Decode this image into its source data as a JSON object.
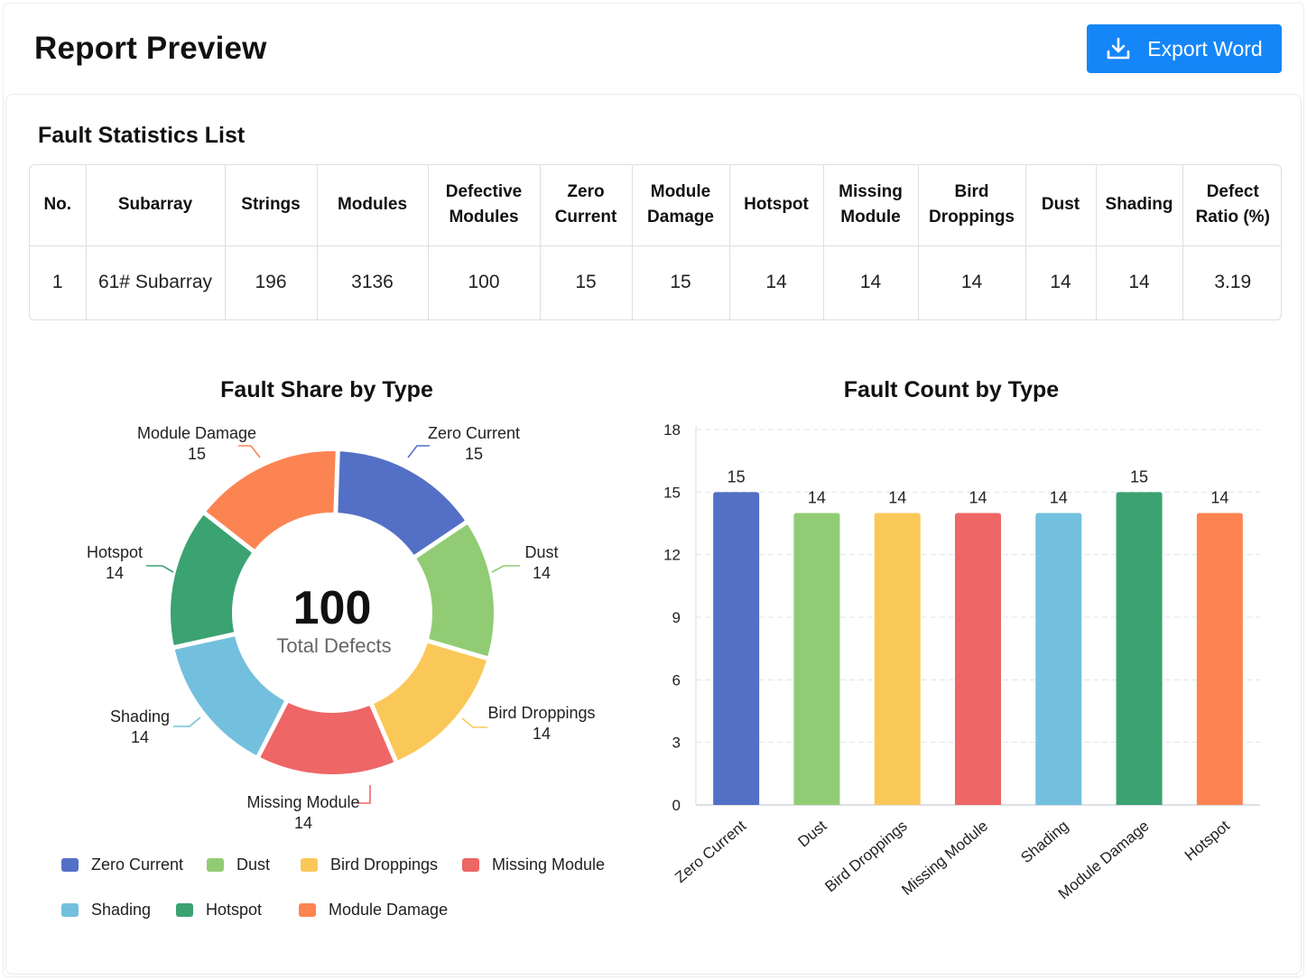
{
  "header": {
    "title": "Report Preview",
    "export_label": "Export Word"
  },
  "table": {
    "title": "Fault Statistics List",
    "columns": [
      {
        "l1": "No.",
        "l2": ""
      },
      {
        "l1": "Subarray",
        "l2": ""
      },
      {
        "l1": "Strings",
        "l2": ""
      },
      {
        "l1": "Modules",
        "l2": ""
      },
      {
        "l1": "Defective",
        "l2": "Modules"
      },
      {
        "l1": "Zero",
        "l2": "Current"
      },
      {
        "l1": "Module",
        "l2": "Damage"
      },
      {
        "l1": "Hotspot",
        "l2": ""
      },
      {
        "l1": "Missing",
        "l2": "Module"
      },
      {
        "l1": "Bird",
        "l2": "Droppings"
      },
      {
        "l1": "Dust",
        "l2": ""
      },
      {
        "l1": "Shading",
        "l2": ""
      },
      {
        "l1": "Defect",
        "l2": "Ratio (%)"
      }
    ],
    "rows": [
      [
        "1",
        "61# Subarray",
        "196",
        "3136",
        "100",
        "15",
        "15",
        "14",
        "14",
        "14",
        "14",
        "14",
        "3.19"
      ]
    ]
  },
  "colors": {
    "zero_current": "#5470c6",
    "dust": "#91cc75",
    "bird_droppings": "#fac858",
    "missing_module": "#ee6666",
    "shading": "#73c0de",
    "hotspot": "#3ba272",
    "module_damage": "#fc8452",
    "accent": "#1586f7"
  },
  "chart_data": [
    {
      "type": "pie",
      "title": "Fault Share by Type",
      "center_value": "100",
      "center_label": "Total Defects",
      "slices": [
        {
          "name": "Zero Current",
          "value": 15,
          "color": "#5470c6"
        },
        {
          "name": "Dust",
          "value": 14,
          "color": "#91cc75"
        },
        {
          "name": "Bird Droppings",
          "value": 14,
          "color": "#fac858"
        },
        {
          "name": "Missing Module",
          "value": 14,
          "color": "#ee6666"
        },
        {
          "name": "Shading",
          "value": 14,
          "color": "#73c0de"
        },
        {
          "name": "Hotspot",
          "value": 14,
          "color": "#3ba272"
        },
        {
          "name": "Module Damage",
          "value": 15,
          "color": "#fc8452"
        }
      ],
      "legend": [
        "Zero Current",
        "Dust",
        "Bird Droppings",
        "Missing Module",
        "Shading",
        "Hotspot",
        "Module Damage"
      ],
      "legend_position": "bottom"
    },
    {
      "type": "bar",
      "title": "Fault Count by Type",
      "categories": [
        "Zero Current",
        "Dust",
        "Bird Droppings",
        "Missing Module",
        "Shading",
        "Module Damage",
        "Hotspot"
      ],
      "values": [
        15,
        14,
        14,
        14,
        14,
        15,
        14
      ],
      "colors": [
        "#5470c6",
        "#91cc75",
        "#fac858",
        "#ee6666",
        "#73c0de",
        "#3ba272",
        "#fc8452"
      ],
      "ylim": [
        0,
        18
      ],
      "yticks": [
        0,
        3,
        6,
        9,
        12,
        15,
        18
      ],
      "grid": true,
      "xlabel": "",
      "ylabel": ""
    }
  ]
}
